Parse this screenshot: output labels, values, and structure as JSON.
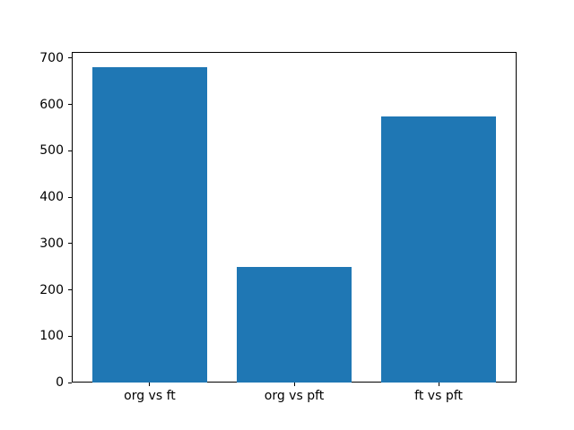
{
  "figure": {
    "background": "#ffffff",
    "axes_color": "#000000"
  },
  "chart_data": {
    "type": "bar",
    "categories": [
      "org vs ft",
      "org vs pft",
      "ft vs pft"
    ],
    "values": [
      680,
      250,
      574
    ],
    "title": "",
    "xlabel": "",
    "ylabel": "",
    "ylim": [
      0,
      714
    ],
    "xlim": [
      -0.54,
      2.54
    ],
    "yticks": [
      0,
      100,
      200,
      300,
      400,
      500,
      600,
      700
    ],
    "bar_width": 0.8,
    "bar_color": "#1f77b4",
    "grid": false,
    "legend": null
  }
}
